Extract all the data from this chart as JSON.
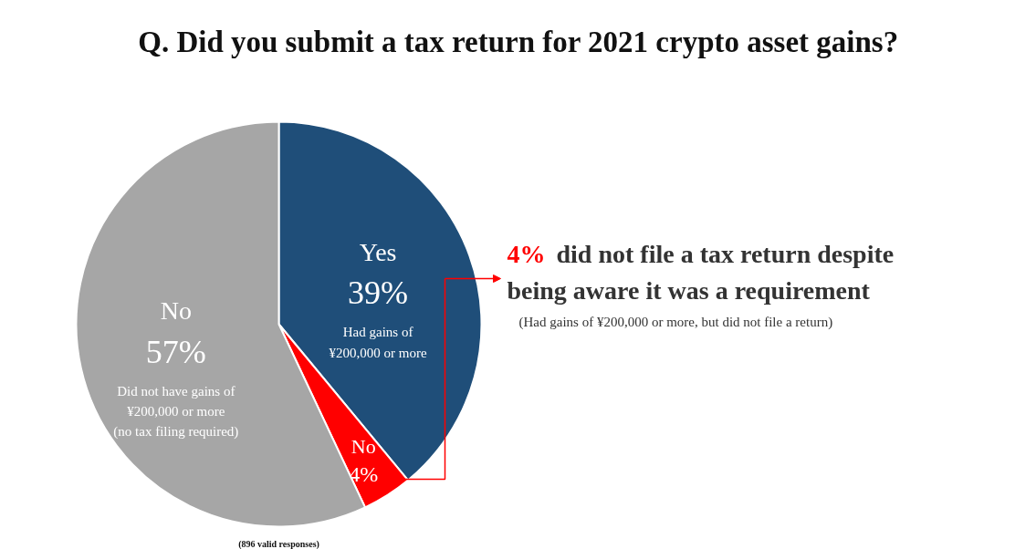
{
  "chart_data": {
    "type": "pie",
    "title": "Q. Did you submit a tax return for 2021 crypto asset gains?",
    "categories": [
      "Yes",
      "No",
      "No"
    ],
    "values": [
      39,
      4,
      57
    ],
    "colors": [
      "#1f4e79",
      "#ff0000",
      "#a6a6a6"
    ],
    "value_labels": [
      "39%",
      "4%",
      "57%"
    ],
    "annotations": [
      "Had gains of\n¥200,000 or more",
      "Did not have gains of\n¥200,000 or more\n(no tax filing required)",
      "4% did not file a tax return despite\nbeing aware it was a requirement",
      "(Had gains of ¥200,000 or more, but did not file a return)",
      "(896 valid responses)"
    ]
  }
}
